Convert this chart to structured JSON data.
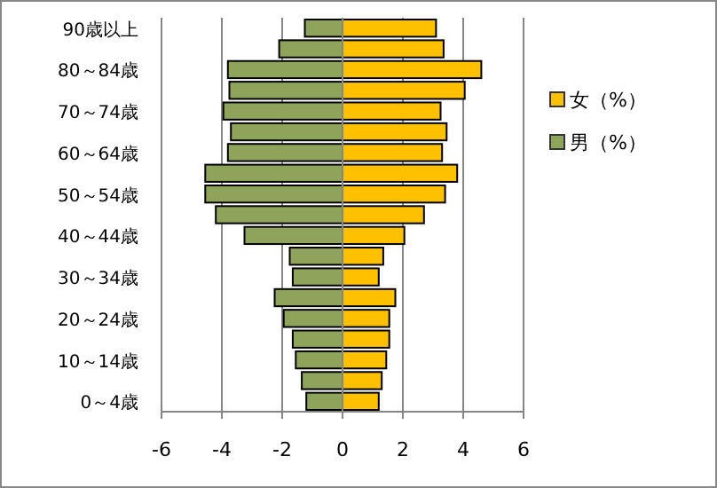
{
  "chart_data": {
    "type": "bar",
    "orientation": "horizontal",
    "stacked": true,
    "categories": [
      "90歳以上",
      null,
      "80～84歳",
      null,
      "70～74歳",
      null,
      "60～64歳",
      null,
      "50～54歳",
      null,
      "40～44歳",
      null,
      "30～34歳",
      null,
      "20～24歳",
      null,
      "10～14歳",
      null,
      "0～4歳"
    ],
    "series": [
      {
        "name": "女（%）",
        "color": "#ffc000",
        "values": [
          3.1,
          3.35,
          4.6,
          4.05,
          3.25,
          3.45,
          3.3,
          3.8,
          3.4,
          2.7,
          2.05,
          1.35,
          1.2,
          1.75,
          1.55,
          1.55,
          1.45,
          1.3,
          1.2
        ]
      },
      {
        "name": "男（%）",
        "color": "#8ea45a",
        "values": [
          -1.25,
          -2.1,
          -3.8,
          -3.75,
          -3.95,
          -3.7,
          -3.8,
          -4.55,
          -4.55,
          -4.2,
          -3.25,
          -1.75,
          -1.65,
          -2.25,
          -1.95,
          -1.65,
          -1.55,
          -1.35,
          -1.2
        ]
      }
    ],
    "xlim": [
      -6,
      6
    ],
    "xticks": [
      -6,
      -4,
      -2,
      0,
      2,
      4,
      6
    ],
    "grid": "x",
    "legend": "right"
  }
}
